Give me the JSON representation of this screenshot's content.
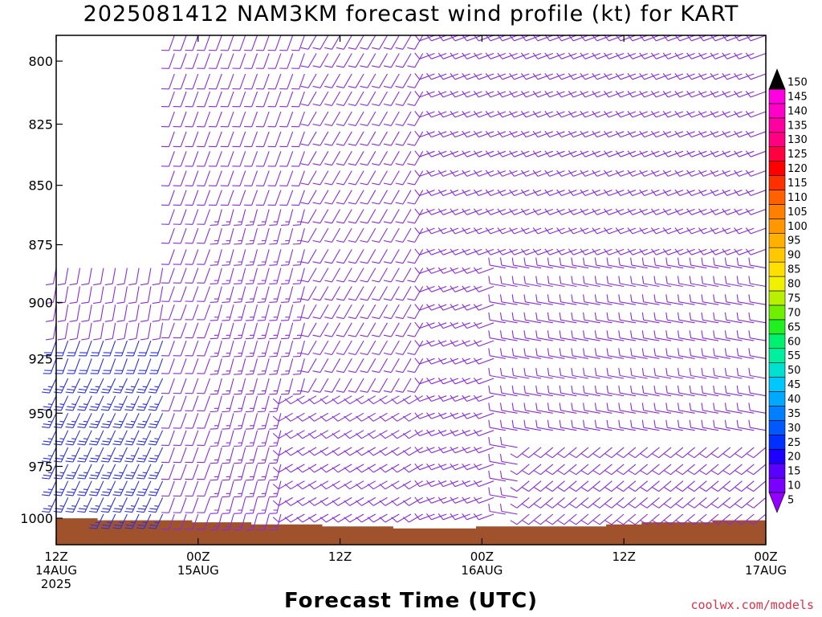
{
  "header": {
    "title": "2025081412 NAM3KM forecast wind profile (kt) for KART"
  },
  "footer": {
    "xlabel": "Forecast Time (UTC)",
    "credit": "coolwx.com/models"
  },
  "colors": {
    "ground": "#a0522d",
    "barb_light": "#8a2be2",
    "barb_strong": "#2a30e0"
  },
  "colorbar": {
    "levels": [
      5,
      10,
      15,
      20,
      25,
      30,
      35,
      40,
      45,
      50,
      55,
      60,
      65,
      70,
      75,
      80,
      85,
      90,
      95,
      100,
      105,
      110,
      115,
      120,
      125,
      130,
      135,
      140,
      145,
      150
    ],
    "labels": [
      "5",
      "10",
      "15",
      "20",
      "25",
      "30",
      "35",
      "40",
      "45",
      "50",
      "55",
      "60",
      "65",
      "70",
      "75",
      "80",
      "85",
      "90",
      "95",
      "100",
      "105",
      "110",
      "115",
      "120",
      "125",
      "130",
      "135",
      "140",
      "145",
      "150"
    ],
    "colors": [
      "#9400ff",
      "#7a00ff",
      "#5a00ff",
      "#1e00ff",
      "#0030ff",
      "#0058ff",
      "#0080ff",
      "#00a8ff",
      "#00c8ff",
      "#00e0d0",
      "#00f0a0",
      "#00f070",
      "#20f020",
      "#70f000",
      "#b8f000",
      "#f0f000",
      "#ffe000",
      "#ffc800",
      "#ffb000",
      "#ff9800",
      "#ff8000",
      "#ff6000",
      "#ff3000",
      "#ff0000",
      "#ff0040",
      "#ff0080",
      "#ff00a0",
      "#ff00c8",
      "#ff00e0",
      "#ff00ff"
    ]
  },
  "chart_data": {
    "type": "wind-barb time-height",
    "title": "2025081412 NAM3KM forecast wind profile (kt) for KART",
    "xlabel": "Forecast Time (UTC)",
    "ylabel": "",
    "y_ticks": [
      "800",
      "825",
      "850",
      "875",
      "900",
      "925",
      "950",
      "975",
      "1000"
    ],
    "x_ticks": [
      {
        "line1": "12Z",
        "line2": "14AUG",
        "line3": "2025"
      },
      {
        "line1": "00Z",
        "line2": "15AUG",
        "line3": ""
      },
      {
        "line1": "12Z",
        "line2": "",
        "line3": ""
      },
      {
        "line1": "00Z",
        "line2": "16AUG",
        "line3": ""
      },
      {
        "line1": "12Z",
        "line2": "",
        "line3": ""
      },
      {
        "line1": "00Z",
        "line2": "17AUG",
        "line3": ""
      }
    ],
    "x_range_hours": [
      0,
      60
    ],
    "ylim_hpa": [
      790,
      1013
    ],
    "y_scale": "log-pressure",
    "barb_interval_hours": 1,
    "barb_levels_hpa": [
      790,
      797,
      805,
      812,
      820,
      828,
      836,
      844,
      852,
      860,
      868,
      877,
      885,
      893,
      901,
      909,
      917,
      925,
      934,
      942,
      950,
      958,
      966,
      974,
      982,
      990,
      998,
      1006
    ],
    "surface_pressure_hpa": [
      1000,
      1000,
      1000,
      1000,
      1001,
      1001,
      1001,
      1001,
      1001,
      1001,
      1001,
      1001,
      1002,
      1002,
      1002,
      1002,
      1002,
      1003,
      1003,
      1003,
      1003,
      1003,
      1003,
      1004,
      1004,
      1004,
      1004,
      1004,
      1004,
      1005,
      1005,
      1005,
      1005,
      1005,
      1005,
      1005,
      1004,
      1004,
      1004,
      1004,
      1004,
      1004,
      1004,
      1004,
      1004,
      1004,
      1004,
      1003,
      1003,
      1003,
      1002,
      1002,
      1002,
      1002,
      1002,
      1002,
      1001,
      1001,
      1001,
      1001,
      1001
    ],
    "regimes": [
      {
        "hours": [
          0,
          10
        ],
        "p_min": 880,
        "dir_deg": 190,
        "speed_kt": 10
      },
      {
        "hours": [
          0,
          10
        ],
        "p_min": 915,
        "dir_deg": 200,
        "speed_kt": 20
      },
      {
        "hours": [
          0,
          10
        ],
        "p_min": 930,
        "dir_deg": 205,
        "speed_kt": 25
      },
      {
        "hours": [
          10,
          22
        ],
        "p_min": 790,
        "dir_deg": 200,
        "speed_kt": 10
      },
      {
        "hours": [
          14,
          25
        ],
        "p_min": 855,
        "dir_deg": 195,
        "speed_kt": 15
      },
      {
        "hours": [
          22,
          38
        ],
        "p_min": 790,
        "dir_deg": 210,
        "speed_kt": 10
      },
      {
        "hours": [
          20,
          32
        ],
        "p_min": 935,
        "dir_deg": 240,
        "speed_kt": 10
      },
      {
        "hours": [
          32,
          60
        ],
        "p_min": 790,
        "dir_deg": 250,
        "speed_kt": 10
      },
      {
        "hours": [
          38,
          60
        ],
        "p_min": 880,
        "dir_deg": 280,
        "speed_kt": 10
      },
      {
        "hours": [
          40,
          60
        ],
        "p_min": 960,
        "dir_deg": 230,
        "speed_kt": 10
      }
    ]
  }
}
